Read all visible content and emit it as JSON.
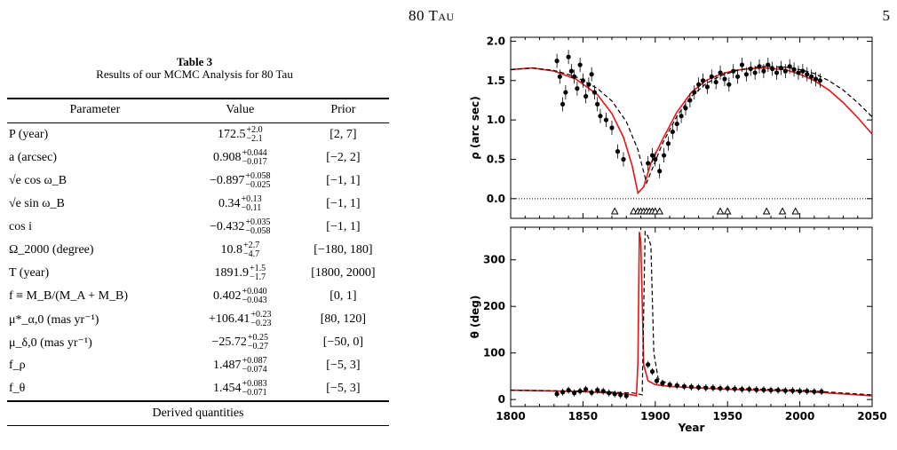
{
  "header": {
    "title": "80 Tau",
    "page": "5"
  },
  "table": {
    "label": "Table 3",
    "title": "Results of our MCMC Analysis for 80 Tau",
    "columns": [
      "Parameter",
      "Value",
      "Prior"
    ],
    "rows": [
      {
        "param": "P (year)",
        "value": "172.5",
        "up": "+2.0",
        "lo": "−2.1",
        "prior": "[2, 7]"
      },
      {
        "param": "a (arcsec)",
        "value": "0.908",
        "up": "+0.044",
        "lo": "−0.017",
        "prior": "[−2, 2]"
      },
      {
        "param": "√e cos ω_B",
        "value": "−0.897",
        "up": "+0.058",
        "lo": "−0.025",
        "prior": "[−1, 1]"
      },
      {
        "param": "√e sin ω_B",
        "value": "0.34",
        "up": "+0.13",
        "lo": "−0.11",
        "prior": "[−1, 1]"
      },
      {
        "param": "cos i",
        "value": "−0.432",
        "up": "+0.035",
        "lo": "−0.058",
        "prior": "[−1, 1]"
      },
      {
        "param": "Ω_2000 (degree)",
        "value": "10.8",
        "up": "+2.7",
        "lo": "−4.7",
        "prior": "[−180, 180]"
      },
      {
        "param": "T (year)",
        "value": "1891.9",
        "up": "+1.5",
        "lo": "−1.7",
        "prior": "[1800, 2000]"
      },
      {
        "param": "f ≡ M_B/(M_A + M_B)",
        "value": "0.402",
        "up": "+0.040",
        "lo": "−0.043",
        "prior": "[0, 1]"
      },
      {
        "param": "μ*_α,0 (mas yr⁻¹)",
        "value": "+106.41",
        "up": "+0.23",
        "lo": "−0.23",
        "prior": "[80, 120]"
      },
      {
        "param": "μ_δ,0 (mas yr⁻¹)",
        "value": "−25.72",
        "up": "+0.25",
        "lo": "−0.27",
        "prior": "[−50, 0]"
      },
      {
        "param": "f_ρ",
        "value": "1.487",
        "up": "+0.087",
        "lo": "−0.074",
        "prior": "[−5, 3]"
      },
      {
        "param": "f_θ",
        "value": "1.454",
        "up": "+0.083",
        "lo": "−0.071",
        "prior": "[−5, 3]"
      }
    ],
    "derived_label": "Derived quantities"
  },
  "chart_data": [
    {
      "type": "line",
      "ylabel": "ρ (arc sec)",
      "xlim": [
        1800,
        2050
      ],
      "ylim": [
        -0.25,
        2.05
      ],
      "yticks": [
        "0.0",
        "0.5",
        "1.0",
        "1.5",
        "2.0"
      ],
      "series": [
        {
          "style": "solid-red",
          "x": [
            1800,
            1815,
            1830,
            1845,
            1860,
            1870,
            1878,
            1884,
            1888,
            1892,
            1897,
            1905,
            1915,
            1925,
            1935,
            1945,
            1955,
            1965,
            1975,
            1990,
            2000,
            2010,
            2020,
            2030,
            2040,
            2050
          ],
          "y": [
            1.64,
            1.66,
            1.62,
            1.52,
            1.32,
            1.08,
            0.78,
            0.42,
            0.07,
            0.15,
            0.45,
            0.75,
            1.1,
            1.35,
            1.5,
            1.58,
            1.63,
            1.65,
            1.66,
            1.64,
            1.58,
            1.5,
            1.38,
            1.22,
            1.03,
            0.82
          ]
        },
        {
          "style": "dashed-black",
          "x": [
            1800,
            1815,
            1830,
            1845,
            1860,
            1870,
            1880,
            1888,
            1894,
            1898,
            1905,
            1915,
            1925,
            1935,
            1945,
            1955,
            1965,
            1975,
            1990,
            2000,
            2010,
            2020,
            2030,
            2040,
            2050
          ],
          "y": [
            1.64,
            1.66,
            1.63,
            1.55,
            1.4,
            1.24,
            0.98,
            0.62,
            0.2,
            0.38,
            0.7,
            1.05,
            1.3,
            1.46,
            1.56,
            1.62,
            1.66,
            1.68,
            1.67,
            1.64,
            1.59,
            1.5,
            1.38,
            1.22,
            1.04
          ]
        }
      ],
      "points": {
        "x": [
          1832,
          1834,
          1836,
          1838,
          1840,
          1842,
          1844,
          1846,
          1848,
          1850,
          1852,
          1854,
          1856,
          1858,
          1860,
          1862,
          1866,
          1870,
          1874,
          1878,
          1895,
          1898,
          1900,
          1903,
          1906,
          1909,
          1912,
          1915,
          1918,
          1921,
          1924,
          1927,
          1930,
          1933,
          1936,
          1939,
          1942,
          1945,
          1948,
          1951,
          1954,
          1957,
          1960,
          1963,
          1966,
          1969,
          1972,
          1975,
          1978,
          1981,
          1984,
          1987,
          1990,
          1993,
          1996,
          1999,
          2002,
          2005,
          2008,
          2011,
          2014
        ],
        "y": [
          1.75,
          1.55,
          1.2,
          1.35,
          1.8,
          1.62,
          1.55,
          1.4,
          1.7,
          1.5,
          1.3,
          1.45,
          1.58,
          1.35,
          1.2,
          1.05,
          1.0,
          0.9,
          0.6,
          0.5,
          0.45,
          0.55,
          0.5,
          0.35,
          0.55,
          0.7,
          0.85,
          0.95,
          1.05,
          1.15,
          1.25,
          1.35,
          1.45,
          1.5,
          1.42,
          1.55,
          1.48,
          1.6,
          1.52,
          1.45,
          1.62,
          1.55,
          1.7,
          1.58,
          1.65,
          1.6,
          1.68,
          1.62,
          1.7,
          1.65,
          1.6,
          1.66,
          1.62,
          1.68,
          1.64,
          1.6,
          1.62,
          1.58,
          1.55,
          1.52,
          1.5
        ]
      },
      "triangles_x": [
        1872,
        1885,
        1888,
        1890,
        1892,
        1894,
        1896,
        1898,
        1900,
        1903,
        1945,
        1950,
        1977,
        1988,
        1997
      ]
    },
    {
      "type": "line",
      "ylabel": "θ (deg)",
      "xlabel": "Year",
      "xlim": [
        1800,
        2050
      ],
      "ylim": [
        -15,
        370
      ],
      "xticks": [
        "1800",
        "1850",
        "1900",
        "1950",
        "2000",
        "2050"
      ],
      "yticks": [
        "0",
        "100",
        "200",
        "300"
      ],
      "series": [
        {
          "style": "solid-red",
          "x": [
            1800,
            1850,
            1880,
            1887,
            1888,
            1889,
            1890,
            1892,
            1895,
            1900,
            1910,
            1950,
            2000,
            2050
          ],
          "y": [
            20,
            17,
            12,
            8,
            80,
            360,
            340,
            75,
            40,
            32,
            28,
            22,
            18,
            8
          ]
        },
        {
          "style": "dashed-black",
          "x": [
            1800,
            1850,
            1885,
            1891,
            1893,
            1895,
            1897,
            1899,
            1902,
            1910,
            1950,
            2000,
            2050
          ],
          "y": [
            20,
            18,
            14,
            10,
            360,
            350,
            330,
            100,
            45,
            32,
            24,
            20,
            10
          ]
        }
      ],
      "points": {
        "x": [
          1832,
          1836,
          1840,
          1844,
          1848,
          1852,
          1856,
          1860,
          1864,
          1868,
          1872,
          1876,
          1880,
          1895,
          1898,
          1901,
          1905,
          1910,
          1915,
          1920,
          1925,
          1930,
          1935,
          1940,
          1945,
          1950,
          1955,
          1960,
          1965,
          1970,
          1975,
          1980,
          1985,
          1990,
          1995,
          2000,
          2005,
          2010,
          2015
        ],
        "y": [
          12,
          16,
          20,
          14,
          18,
          22,
          15,
          20,
          18,
          14,
          12,
          10,
          8,
          75,
          60,
          40,
          35,
          32,
          30,
          28,
          27,
          26,
          25,
          25,
          24,
          24,
          23,
          22,
          22,
          21,
          21,
          20,
          20,
          19,
          19,
          18,
          18,
          17,
          17
        ]
      }
    }
  ]
}
